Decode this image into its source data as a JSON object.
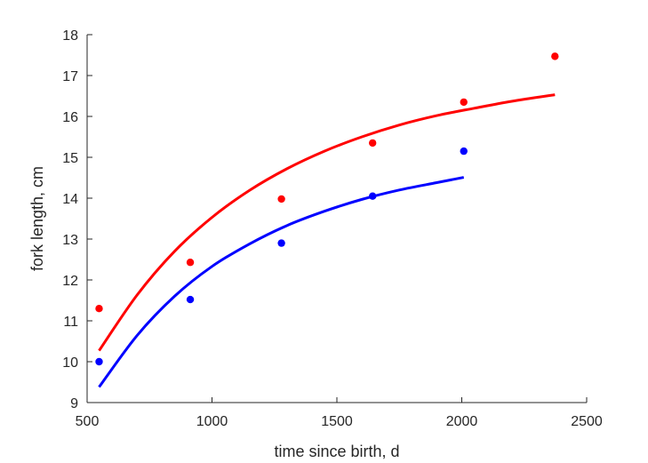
{
  "chart_data": {
    "type": "scatter",
    "title": "",
    "xlabel": "time since birth, d",
    "ylabel": "fork length, cm",
    "xlim": [
      500,
      2500
    ],
    "ylim": [
      9,
      18
    ],
    "xticks": [
      500,
      1000,
      1500,
      2000,
      2500
    ],
    "yticks": [
      9,
      10,
      11,
      12,
      13,
      14,
      15,
      16,
      17,
      18
    ],
    "grid": false,
    "legend": "none",
    "series": [
      {
        "color": "#ff0000",
        "points": [
          {
            "x": 548,
            "y": 11.3
          },
          {
            "x": 913,
            "y": 12.43
          },
          {
            "x": 1278,
            "y": 13.98
          },
          {
            "x": 1643,
            "y": 15.35
          },
          {
            "x": 2008,
            "y": 16.35
          },
          {
            "x": 2373,
            "y": 17.47
          }
        ],
        "curve": [
          {
            "x": 548,
            "y": 10.27
          },
          {
            "x": 700,
            "y": 11.63
          },
          {
            "x": 850,
            "y": 12.7
          },
          {
            "x": 1000,
            "y": 13.53
          },
          {
            "x": 1150,
            "y": 14.19
          },
          {
            "x": 1300,
            "y": 14.72
          },
          {
            "x": 1450,
            "y": 15.15
          },
          {
            "x": 1600,
            "y": 15.5
          },
          {
            "x": 1750,
            "y": 15.79
          },
          {
            "x": 1900,
            "y": 16.02
          },
          {
            "x": 2050,
            "y": 16.2
          },
          {
            "x": 2200,
            "y": 16.37
          },
          {
            "x": 2373,
            "y": 16.53
          }
        ]
      },
      {
        "color": "#0000ff",
        "points": [
          {
            "x": 548,
            "y": 10.0
          },
          {
            "x": 913,
            "y": 11.52
          },
          {
            "x": 1278,
            "y": 12.9
          },
          {
            "x": 1643,
            "y": 14.05
          },
          {
            "x": 2008,
            "y": 15.15
          }
        ],
        "curve": [
          {
            "x": 548,
            "y": 9.38
          },
          {
            "x": 700,
            "y": 10.64
          },
          {
            "x": 850,
            "y": 11.6
          },
          {
            "x": 1000,
            "y": 12.33
          },
          {
            "x": 1150,
            "y": 12.88
          },
          {
            "x": 1300,
            "y": 13.33
          },
          {
            "x": 1450,
            "y": 13.68
          },
          {
            "x": 1600,
            "y": 13.97
          },
          {
            "x": 1750,
            "y": 14.2
          },
          {
            "x": 1900,
            "y": 14.38
          },
          {
            "x": 2008,
            "y": 14.51
          }
        ]
      }
    ]
  }
}
